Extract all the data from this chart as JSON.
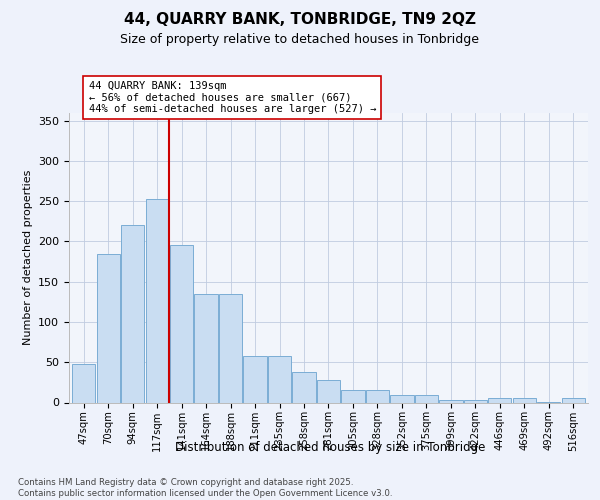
{
  "title1": "44, QUARRY BANK, TONBRIDGE, TN9 2QZ",
  "title2": "Size of property relative to detached houses in Tonbridge",
  "xlabel": "Distribution of detached houses by size in Tonbridge",
  "ylabel": "Number of detached properties",
  "categories": [
    "47sqm",
    "70sqm",
    "94sqm",
    "117sqm",
    "141sqm",
    "164sqm",
    "188sqm",
    "211sqm",
    "235sqm",
    "258sqm",
    "281sqm",
    "305sqm",
    "328sqm",
    "352sqm",
    "375sqm",
    "399sqm",
    "422sqm",
    "446sqm",
    "469sqm",
    "492sqm",
    "516sqm"
  ],
  "values": [
    48,
    184,
    220,
    253,
    195,
    135,
    135,
    58,
    58,
    38,
    28,
    15,
    15,
    9,
    9,
    3,
    3,
    6,
    6,
    1,
    6
  ],
  "bar_color": "#c9ddf2",
  "bar_edge_color": "#7aadd4",
  "vline_idx": 4,
  "vline_color": "#cc0000",
  "annotation_text": "44 QUARRY BANK: 139sqm\n← 56% of detached houses are smaller (667)\n44% of semi-detached houses are larger (527) →",
  "annotation_box_color": "white",
  "annotation_box_edge": "#cc0000",
  "ylim": [
    0,
    360
  ],
  "yticks": [
    0,
    50,
    100,
    150,
    200,
    250,
    300,
    350
  ],
  "footer1": "Contains HM Land Registry data © Crown copyright and database right 2025.",
  "footer2": "Contains public sector information licensed under the Open Government Licence v3.0.",
  "bg_color": "#eef2fb",
  "plot_bg_color": "#f2f5fb",
  "grid_color": "#c0cce0"
}
